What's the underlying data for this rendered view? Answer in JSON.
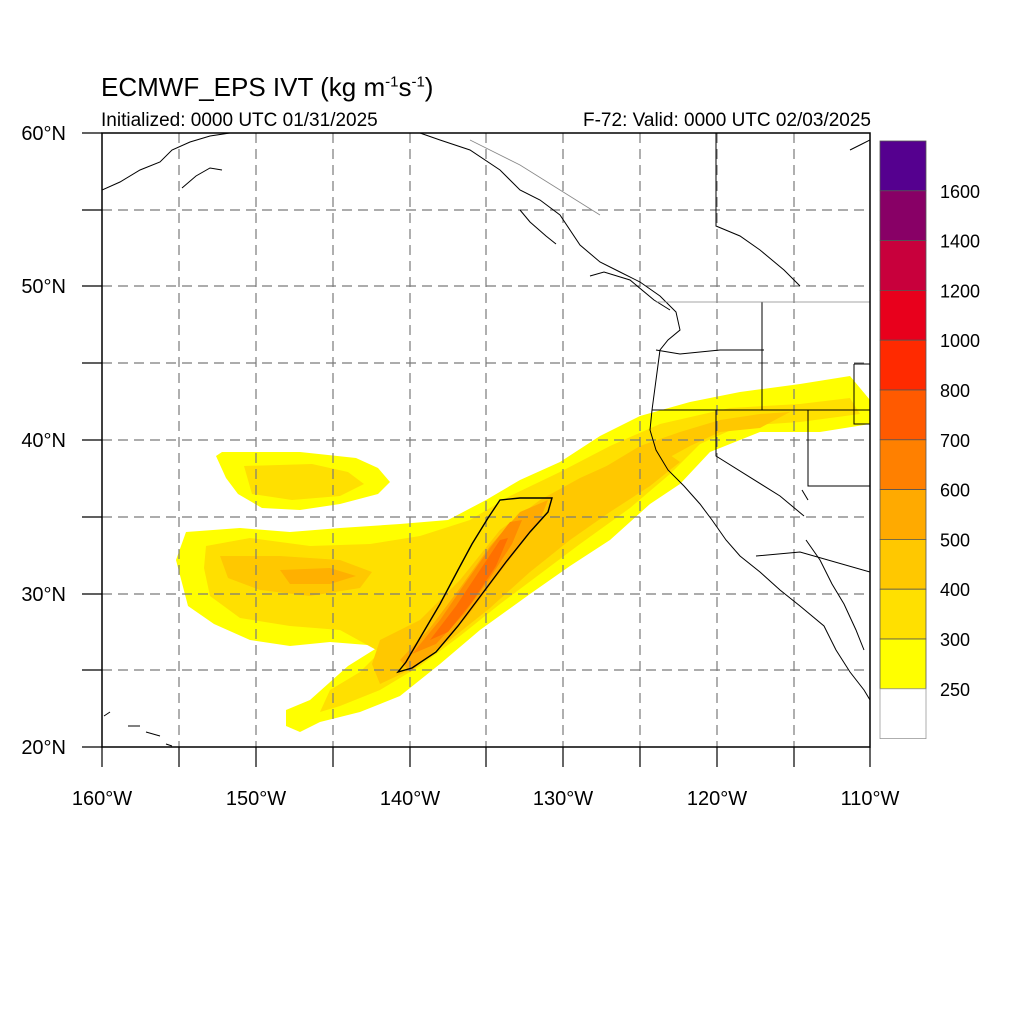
{
  "header": {
    "title_main": "ECMWF_EPS IVT (kg m",
    "title_exp1": "-1",
    "title_mid": "s",
    "title_exp2": "-1",
    "title_end": ")",
    "initialized": "Initialized: 0000 UTC 01/31/2025",
    "valid": "F-72: Valid: 0000 UTC 02/03/2025"
  },
  "map": {
    "lon_range": [
      -160,
      -110
    ],
    "lat_range": [
      20,
      60
    ],
    "lon_labels": [
      "160°W",
      "150°W",
      "140°W",
      "130°W",
      "120°W",
      "110°W"
    ],
    "lat_labels": [
      "60°N",
      "50°N",
      "40°N",
      "30°N",
      "20°N"
    ],
    "grid": "dashed every 5°"
  },
  "colorbar": {
    "labels": [
      "1600",
      "1400",
      "1200",
      "1000",
      "800",
      "700",
      "600",
      "500",
      "400",
      "300",
      "250"
    ],
    "colors": [
      "#55008f",
      "#880066",
      "#c8003c",
      "#e8001c",
      "#ff2a00",
      "#ff5a00",
      "#ff8000",
      "#ffaa00",
      "#ffc800",
      "#ffe000",
      "#ffff00",
      "#ffffff"
    ]
  }
}
